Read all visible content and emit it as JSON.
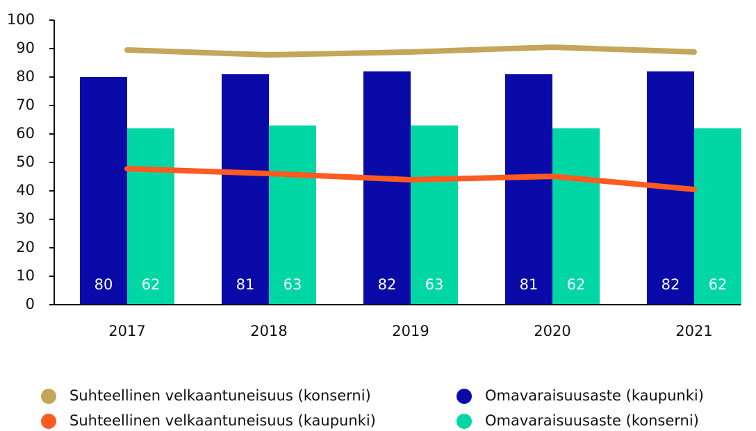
{
  "chart_data": {
    "type": "bar",
    "categories": [
      "2017",
      "2018",
      "2019",
      "2020",
      "2021"
    ],
    "series": [
      {
        "name": "Suhteellinen velkaantuneisuus (konserni)",
        "type": "line",
        "color": "#c4a65a",
        "values": [
          89.5,
          87.8,
          88.8,
          90.5,
          88.8
        ]
      },
      {
        "name": "Suhteellinen velkaantuneisuus (kaupunki)",
        "type": "line",
        "color": "#ff5a1f",
        "values": [
          47.8,
          46.1,
          43.9,
          45.1,
          40.5
        ]
      },
      {
        "name": "Omavaraisuusaste (kaupunki)",
        "type": "bar",
        "color": "#0a0aa8",
        "values": [
          80,
          81,
          82,
          81,
          82
        ]
      },
      {
        "name": "Omavaraisuusaste (konserni)",
        "type": "bar",
        "color": "#00d7a5",
        "values": [
          62,
          63,
          63,
          62,
          62
        ]
      }
    ],
    "ylim": [
      0,
      100
    ],
    "yticks": [
      0,
      10,
      20,
      30,
      40,
      50,
      60,
      70,
      80,
      90,
      100
    ],
    "data_labels": true,
    "legend": "bottom"
  }
}
